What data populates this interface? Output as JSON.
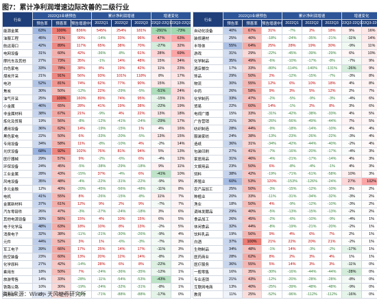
{
  "title": "图7：累计净利润增速边际改善的二级行业",
  "source": "资料来源：Wind，天风证券研究所",
  "header": {
    "groups": [
      "2022Q3业绩预告",
      "累计净利润增速",
      "增速变化"
    ],
    "columns": [
      "行业",
      "预告率",
      "预喜率",
      "预告增速中值",
      "2022Q1",
      "2022Q2",
      "2022Q3",
      "22Q2-22Q1",
      "22Q3-22Q2"
    ]
  },
  "left": {
    "rows": [
      [
        "能源金属",
        "63%",
        "100%",
        "836%",
        "545%",
        "254%",
        "181%",
        "-291%",
        "-73%"
      ],
      [
        "油服工程",
        "45%",
        "71%",
        "90%",
        "-14%",
        "33%",
        "96%",
        "47%",
        "63%"
      ],
      [
        "航运港口",
        "42%",
        "89%",
        "117%",
        "65%",
        "38%",
        "70%",
        "-27%",
        "32%"
      ],
      [
        "电网设备",
        "31%",
        "60%",
        "42%",
        "-36%",
        "-8%",
        "61%",
        "28%",
        "69%"
      ],
      [
        "摩托车及其他",
        "27%",
        "73%",
        "35%",
        "-1%",
        "14%",
        "48%",
        "15%",
        "34%"
      ],
      [
        "白色家电",
        "33%",
        "78%",
        "38%",
        "8%",
        "19%",
        "42%",
        "11%",
        "23%"
      ],
      [
        "煤炭开采",
        "21%",
        "91%",
        "56%",
        "93%",
        "101%",
        "118%",
        "8%",
        "17%"
      ],
      [
        "电池",
        "52%",
        "81%",
        "74%",
        "62%",
        "77%",
        "90%",
        "15%",
        "13%"
      ],
      [
        "焦炭",
        "30%",
        "50%",
        "-12%",
        "22%",
        "-29%",
        "-5%",
        "-51%",
        "24%"
      ],
      [
        "油气开采",
        "25%",
        "100%",
        "160%",
        "89%",
        "74%",
        "95%",
        "-15%",
        "21%"
      ],
      [
        "小金属",
        "46%",
        "65%",
        "28%",
        "41%",
        "19%",
        "38%",
        "-22%",
        "19%"
      ],
      [
        "非金属材料",
        "38%",
        "67%",
        "21%",
        "-9%",
        "4%",
        "22%",
        "13%",
        "18%"
      ],
      [
        "炼化及贸易",
        "19%",
        "56%",
        "-8%",
        "-12%",
        "-41%",
        "-24%",
        "-29%",
        "17%"
      ],
      [
        "通用设备",
        "36%",
        "62%",
        "14%",
        "-19%",
        "-15%",
        "1%",
        "4%",
        "16%"
      ],
      [
        "黑色家电",
        "22%",
        "50%",
        "6%",
        "-33%",
        "-20%",
        "-5%",
        "13%",
        "15%"
      ],
      [
        "专用设备",
        "34%",
        "58%",
        "11%",
        "-8%",
        "-10%",
        "4%",
        "-2%",
        "14%"
      ],
      [
        "光伏设备",
        "68%",
        "92%",
        "102%",
        "76%",
        "81%",
        "94%",
        "5%",
        "13%"
      ],
      [
        "医疗器械",
        "29%",
        "57%",
        "9%",
        "-2%",
        "-6%",
        "6%",
        "-4%",
        "12%"
      ],
      [
        "环保设备",
        "24%",
        "45%",
        "-5%",
        "-38%",
        "-29%",
        "-18%",
        "9%",
        "11%"
      ],
      [
        "工业金属",
        "28%",
        "43%",
        "-15%",
        "37%",
        "-4%",
        "6%",
        "-41%",
        "10%"
      ],
      [
        "风电设备",
        "35%",
        "48%",
        "-4%",
        "-22%",
        "-31%",
        "-22%",
        "-9%",
        "9%"
      ],
      [
        "多元金融",
        "12%",
        "40%",
        "-20%",
        "-45%",
        "-56%",
        "-48%",
        "-11%",
        "8%"
      ],
      [
        "电机",
        "41%",
        "55%",
        "8%",
        "-26%",
        "-15%",
        "-8%",
        "11%",
        "7%"
      ],
      [
        "金属新材料",
        "37%",
        "61%",
        "12%",
        "9%",
        "2%",
        "9%",
        "-7%",
        "7%"
      ],
      [
        "汽车零部件",
        "26%",
        "47%",
        "-3%",
        "-27%",
        "-24%",
        "-18%",
        "3%",
        "6%"
      ],
      [
        "其他电源设备",
        "30%",
        "56%",
        "15%",
        "4%",
        "10%",
        "15%",
        "6%",
        "5%"
      ],
      [
        "电子化学品",
        "48%",
        "63%",
        "18%",
        "10%",
        "8%",
        "13%",
        "-2%",
        "5%"
      ],
      [
        "消费电子",
        "32%",
        "38%",
        "-11%",
        "-21%",
        "-30%",
        "-26%",
        "-9%",
        "4%"
      ],
      [
        "元件",
        "44%",
        "52%",
        "3%",
        "1%",
        "-6%",
        "-3%",
        "-7%",
        "3%"
      ],
      [
        "军工电子",
        "39%",
        "66%",
        "17%",
        "25%",
        "14%",
        "17%",
        "-11%",
        "3%"
      ],
      [
        "航空装备",
        "23%",
        "60%",
        "13%",
        "20%",
        "12%",
        "14%",
        "-8%",
        "2%"
      ],
      [
        "化学原料",
        "27%",
        "42%",
        "-14%",
        "28%",
        "6%",
        "8%",
        "-22%",
        "2%"
      ],
      [
        "乘用车",
        "18%",
        "50%",
        "7%",
        "-24%",
        "-36%",
        "-35%",
        "-12%",
        "1%"
      ],
      [
        "旅游零售",
        "14%",
        "33%",
        "-28%",
        "-11%",
        "-54%",
        "-53%",
        "-43%",
        "1%"
      ],
      [
        "铁路公路",
        "10%",
        "30%",
        "-19%",
        "-24%",
        "-32%",
        "-31%",
        "-8%",
        "1%"
      ],
      [
        "商用车",
        "20%",
        "25%",
        "-65%",
        "-71%",
        "-88%",
        "-88%",
        "-17%",
        "0%"
      ]
    ]
  },
  "right": {
    "rows": [
      [
        "自动化设备",
        "40%",
        "67%",
        "31%",
        "-7%",
        "2%",
        "18%",
        "9%",
        "16%"
      ],
      [
        "装修建材",
        "25%",
        "40%",
        "-18%",
        "-24%",
        "-35%",
        "-21%",
        "-11%",
        "14%"
      ],
      [
        "半导体",
        "55%",
        "64%",
        "25%",
        "28%",
        "19%",
        "30%",
        "-9%",
        "11%"
      ],
      [
        "游戏",
        "31%",
        "29%",
        "-22%",
        "-45%",
        "-39%",
        "-29%",
        "6%",
        "10%"
      ],
      [
        "化学制品",
        "35%",
        "49%",
        "-6%",
        "-10%",
        "-17%",
        "-8%",
        "-7%",
        "9%"
      ],
      [
        "酒店餐饮",
        "17%",
        "33%",
        "-80%",
        "-114%",
        "-140%",
        "-131%",
        "-26%",
        "9%"
      ],
      [
        "饰品",
        "29%",
        "50%",
        "2%",
        "-12%",
        "-15%",
        "-7%",
        "-3%",
        "8%"
      ],
      [
        "物流",
        "30%",
        "55%",
        "12%",
        "6%",
        "10%",
        "18%",
        "4%",
        "8%"
      ],
      [
        "中药",
        "26%",
        "58%",
        "9%",
        "3%",
        "5%",
        "12%",
        "2%",
        "7%"
      ],
      [
        "化学制药",
        "33%",
        "47%",
        "-2%",
        "-5%",
        "-9%",
        "-3%",
        "-4%",
        "6%"
      ],
      [
        "贸易",
        "22%",
        "60%",
        "14%",
        "-1%",
        "2%",
        "8%",
        "3%",
        "6%"
      ],
      [
        "电视广播",
        "15%",
        "33%",
        "-31%",
        "-42%",
        "-38%",
        "-33%",
        "4%",
        "5%"
      ],
      [
        "广告营销",
        "21%",
        "36%",
        "-26%",
        "-56%",
        "-49%",
        "-44%",
        "7%",
        "5%"
      ],
      [
        "纺织制造",
        "28%",
        "44%",
        "-9%",
        "-18%",
        "-14%",
        "-10%",
        "4%",
        "4%"
      ],
      [
        "服装家纺",
        "24%",
        "38%",
        "-13%",
        "-23%",
        "-26%",
        "-22%",
        "-3%",
        "4%"
      ],
      [
        "造纸",
        "36%",
        "31%",
        "-34%",
        "-42%",
        "-44%",
        "-40%",
        "-2%",
        "4%"
      ],
      [
        "包装印刷",
        "27%",
        "41%",
        "-7%",
        "-16%",
        "-20%",
        "-17%",
        "-4%",
        "3%"
      ],
      [
        "家居用品",
        "31%",
        "46%",
        "-4%",
        "-21%",
        "-17%",
        "-14%",
        "4%",
        "3%"
      ],
      [
        "文娱用品",
        "23%",
        "50%",
        "6%",
        "-8%",
        "-4%",
        "-1%",
        "4%",
        "3%"
      ],
      [
        "饲料",
        "38%",
        "42%",
        "-19%",
        "-71%",
        "-61%",
        "-58%",
        "10%",
        "3%"
      ],
      [
        "养殖业",
        "60%",
        "53%",
        "120%",
        "-153%",
        "-126%",
        "-24%",
        "27%",
        "102%"
      ],
      [
        "农产品加工",
        "25%",
        "50%",
        "-3%",
        "-15%",
        "-12%",
        "-10%",
        "3%",
        "2%"
      ],
      [
        "种植业",
        "20%",
        "33%",
        "-11%",
        "-31%",
        "-34%",
        "-32%",
        "-3%",
        "2%"
      ],
      [
        "渔业",
        "18%",
        "50%",
        "4%",
        "-9%",
        "-12%",
        "-10%",
        "-3%",
        "2%"
      ],
      [
        "调味发酵品",
        "29%",
        "40%",
        "-5%",
        "-13%",
        "-15%",
        "-13%",
        "-2%",
        "2%"
      ],
      [
        "食品加工",
        "26%",
        "45%",
        "-2%",
        "-6%",
        "-10%",
        "-9%",
        "-4%",
        "1%"
      ],
      [
        "休闲食品",
        "32%",
        "44%",
        "-8%",
        "-19%",
        "-21%",
        "-20%",
        "-2%",
        "1%"
      ],
      [
        "饮料乳品",
        "19%",
        "56%",
        "9%",
        "4%",
        "6%",
        "7%",
        "2%",
        "1%"
      ],
      [
        "白酒",
        "37%",
        "100%",
        "21%",
        "22%",
        "20%",
        "21%",
        "-2%",
        "1%"
      ],
      [
        "生物制品",
        "34%",
        "48%",
        "-1%",
        "14%",
        "-3%",
        "-2%",
        "-17%",
        "1%"
      ],
      [
        "医药商业",
        "28%",
        "62%",
        "8%",
        "2%",
        "3%",
        "4%",
        "1%",
        "1%"
      ],
      [
        "医疗服务",
        "36%",
        "55%",
        "5%",
        "14%",
        "3%",
        "3%",
        "-11%",
        "0%"
      ],
      [
        "一般零售",
        "16%",
        "35%",
        "-30%",
        "-16%",
        "-44%",
        "-44%",
        "-28%",
        "0%"
      ],
      [
        "专业连锁",
        "21%",
        "43%",
        "-12%",
        "-20%",
        "-28%",
        "-28%",
        "-8%",
        "0%"
      ],
      [
        "互联网电商",
        "13%",
        "40%",
        "-25%",
        "-39%",
        "-48%",
        "-48%",
        "-9%",
        "0%"
      ],
      [
        "教育",
        "11%",
        "25%",
        "-52%",
        "-96%",
        "-112%",
        "-112%",
        "-16%",
        "0%"
      ]
    ]
  }
}
